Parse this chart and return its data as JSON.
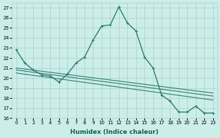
{
  "xlabel": "Humidex (Indice chaleur)",
  "ylabel": "",
  "bg_color": "#cceee8",
  "grid_color": "#aacccc",
  "line_color": "#2a7a70",
  "xlim": [
    -0.5,
    23.5
  ],
  "ylim": [
    16,
    27.5
  ],
  "yticks": [
    16,
    17,
    18,
    19,
    20,
    21,
    22,
    23,
    24,
    25,
    26,
    27
  ],
  "xticks": [
    0,
    1,
    2,
    3,
    4,
    5,
    6,
    7,
    8,
    9,
    10,
    11,
    12,
    13,
    14,
    15,
    16,
    17,
    18,
    19,
    20,
    21,
    22,
    23
  ],
  "series": [
    {
      "x": [
        0,
        1,
        2,
        3,
        4,
        5,
        6,
        7,
        8,
        9,
        10,
        11,
        12,
        13,
        14,
        15,
        16,
        17,
        18,
        19,
        20,
        21,
        22,
        23
      ],
      "y": [
        22.8,
        21.5,
        20.8,
        20.3,
        20.2,
        19.6,
        20.4,
        21.5,
        22.1,
        23.8,
        25.2,
        25.3,
        27.1,
        25.5,
        24.7,
        22.1,
        21.0,
        18.3,
        17.7,
        16.6,
        16.6,
        17.2,
        16.5,
        16.5
      ],
      "has_markers": true
    },
    {
      "x": [
        0,
        23
      ],
      "y": [
        20.5,
        17.8
      ],
      "has_markers": false
    },
    {
      "x": [
        0,
        23
      ],
      "y": [
        20.8,
        18.2
      ],
      "has_markers": false
    },
    {
      "x": [
        0,
        23
      ],
      "y": [
        21.0,
        18.5
      ],
      "has_markers": false
    }
  ]
}
